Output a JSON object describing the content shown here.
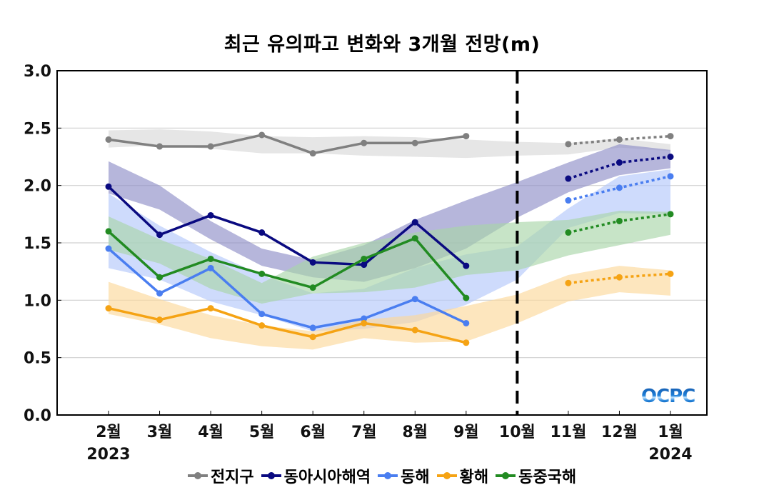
{
  "chart_data": {
    "type": "line",
    "title": "최근 유의파고 변화와 3개월 전망(m)",
    "xlabel": "",
    "ylabel": "",
    "ylim": [
      0,
      3.0
    ],
    "yticks": [
      "0.0",
      "0.5",
      "1.0",
      "1.5",
      "2.0",
      "2.5",
      "3.0"
    ],
    "categories": [
      "2월",
      "3월",
      "4월",
      "5월",
      "6월",
      "7월",
      "8월",
      "9월",
      "10월",
      "11월",
      "12월",
      "1월"
    ],
    "year_labels": {
      "start": "2023",
      "end": "2024"
    },
    "forecast_divider_after": "9월",
    "grid": true,
    "legend_position": "bottom",
    "series": [
      {
        "name": "전지구",
        "color": "#808080",
        "band_color": "#d9d9d9",
        "observed": [
          2.4,
          2.34,
          2.34,
          2.44,
          2.28,
          2.37,
          2.37,
          2.43,
          null,
          null,
          null,
          null
        ],
        "forecast": [
          null,
          null,
          null,
          null,
          null,
          null,
          null,
          null,
          null,
          2.36,
          2.4,
          2.43
        ],
        "band_upper": [
          2.48,
          2.49,
          2.47,
          2.43,
          2.42,
          2.43,
          2.42,
          2.4,
          2.38,
          2.37,
          2.41,
          2.36
        ],
        "band_lower": [
          2.33,
          2.35,
          2.32,
          2.28,
          2.28,
          2.26,
          2.25,
          2.24,
          2.26,
          2.27,
          2.33,
          2.3
        ]
      },
      {
        "name": "동아시아해역",
        "color": "#0a0a80",
        "band_color": "#8f8fc7",
        "observed": [
          1.99,
          1.57,
          1.74,
          1.59,
          1.33,
          1.31,
          1.68,
          1.3,
          null,
          null,
          null,
          null
        ],
        "forecast": [
          null,
          null,
          null,
          null,
          null,
          null,
          null,
          null,
          null,
          2.06,
          2.2,
          2.25
        ],
        "band_upper": [
          2.21,
          2.0,
          1.69,
          1.45,
          1.35,
          1.48,
          1.7,
          1.87,
          2.03,
          2.2,
          2.36,
          2.31
        ],
        "band_lower": [
          1.93,
          1.79,
          1.53,
          1.3,
          1.2,
          1.16,
          1.28,
          1.45,
          1.72,
          1.94,
          2.09,
          2.15
        ]
      },
      {
        "name": "동해",
        "color": "#4a7ef0",
        "band_color": "#b3c8fa",
        "observed": [
          1.45,
          1.06,
          1.28,
          0.88,
          0.76,
          0.84,
          1.01,
          0.8,
          null,
          null,
          null,
          null
        ],
        "forecast": [
          null,
          null,
          null,
          null,
          null,
          null,
          null,
          null,
          null,
          1.87,
          1.98,
          2.08
        ],
        "band_upper": [
          1.93,
          1.65,
          1.42,
          1.22,
          1.06,
          1.1,
          1.28,
          1.4,
          1.47,
          1.8,
          2.08,
          2.14
        ],
        "band_lower": [
          1.28,
          1.18,
          0.99,
          0.87,
          0.73,
          0.75,
          0.81,
          0.96,
          1.18,
          1.63,
          1.76,
          1.75
        ]
      },
      {
        "name": "황해",
        "color": "#f5a314",
        "band_color": "#fcd99b",
        "observed": [
          0.93,
          0.83,
          0.93,
          0.78,
          0.68,
          0.8,
          0.74,
          0.63,
          null,
          null,
          null,
          null
        ],
        "forecast": [
          null,
          null,
          null,
          null,
          null,
          null,
          null,
          null,
          null,
          1.15,
          1.2,
          1.23
        ],
        "band_upper": [
          1.16,
          1.01,
          0.87,
          0.78,
          0.73,
          0.83,
          0.87,
          0.95,
          1.05,
          1.22,
          1.3,
          1.26
        ],
        "band_lower": [
          0.88,
          0.79,
          0.67,
          0.6,
          0.57,
          0.67,
          0.63,
          0.64,
          0.8,
          0.99,
          1.07,
          1.04
        ]
      },
      {
        "name": "동중국해",
        "color": "#228b22",
        "band_color": "#a9d6a9",
        "observed": [
          1.6,
          1.2,
          1.36,
          1.23,
          1.11,
          1.36,
          1.54,
          1.02,
          null,
          null,
          null,
          null
        ],
        "forecast": [
          null,
          null,
          null,
          null,
          null,
          null,
          null,
          null,
          null,
          1.59,
          1.69,
          1.75
        ],
        "band_upper": [
          1.73,
          1.53,
          1.36,
          1.15,
          1.38,
          1.5,
          1.59,
          1.65,
          1.68,
          1.7,
          1.78,
          1.77
        ],
        "band_lower": [
          1.44,
          1.32,
          1.1,
          0.97,
          1.06,
          1.07,
          1.11,
          1.22,
          1.26,
          1.39,
          1.48,
          1.57
        ]
      }
    ]
  },
  "logo": "OCPC"
}
